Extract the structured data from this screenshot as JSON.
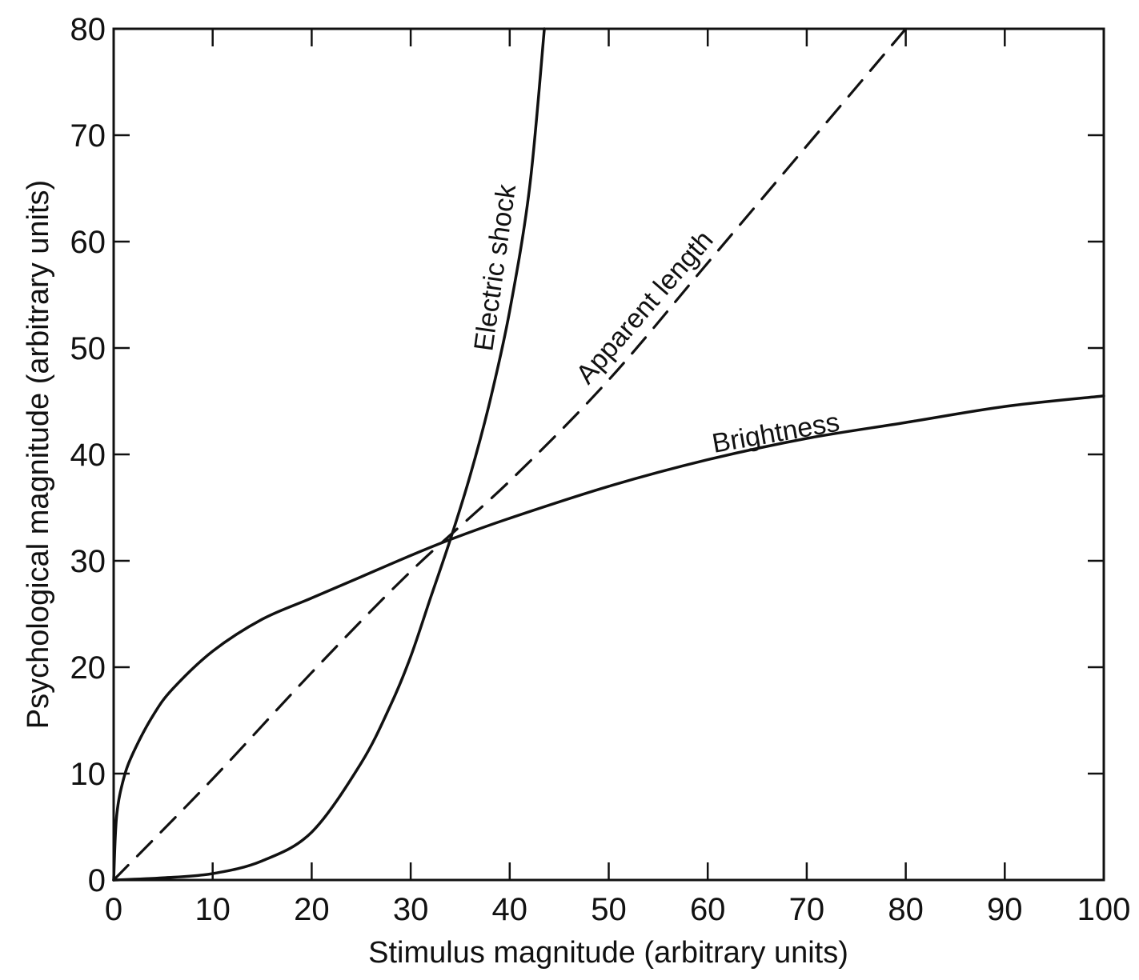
{
  "chart_data": {
    "type": "line",
    "xlabel": "Stimulus magnitude (arbitrary units)",
    "ylabel": "Psychological magnitude (arbitrary units)",
    "xlim": [
      0,
      100
    ],
    "ylim": [
      0,
      80
    ],
    "x_ticks": [
      0,
      10,
      20,
      30,
      40,
      50,
      60,
      70,
      80,
      90,
      100
    ],
    "y_ticks": [
      0,
      10,
      20,
      30,
      40,
      50,
      60,
      70,
      80
    ],
    "grid": false,
    "series": [
      {
        "name": "Electric shock",
        "style": "solid",
        "x": [
          0,
          5,
          10,
          15,
          20,
          25,
          28,
          30,
          32,
          34,
          36,
          38,
          40,
          42,
          43.5
        ],
        "y": [
          0,
          0.2,
          0.6,
          1.8,
          4.5,
          11,
          16.5,
          21,
          26.5,
          32,
          38,
          45,
          53.5,
          65,
          80
        ]
      },
      {
        "name": "Apparent length",
        "style": "dashed",
        "x": [
          0,
          10,
          20,
          30,
          40,
          50,
          60,
          70,
          80
        ],
        "y": [
          0,
          9.5,
          19.5,
          29,
          37.5,
          47,
          58,
          69,
          80
        ]
      },
      {
        "name": "Brightness",
        "style": "solid",
        "x": [
          0,
          0.3,
          1,
          2,
          4,
          6,
          10,
          15,
          20,
          25,
          30,
          34,
          40,
          50,
          60,
          70,
          80,
          90,
          100
        ],
        "y": [
          0,
          6,
          9.5,
          12,
          15.5,
          18,
          21.5,
          24.5,
          26.5,
          28.5,
          30.5,
          32,
          34,
          37,
          39.5,
          41.5,
          43,
          44.5,
          45.5
        ]
      }
    ]
  }
}
